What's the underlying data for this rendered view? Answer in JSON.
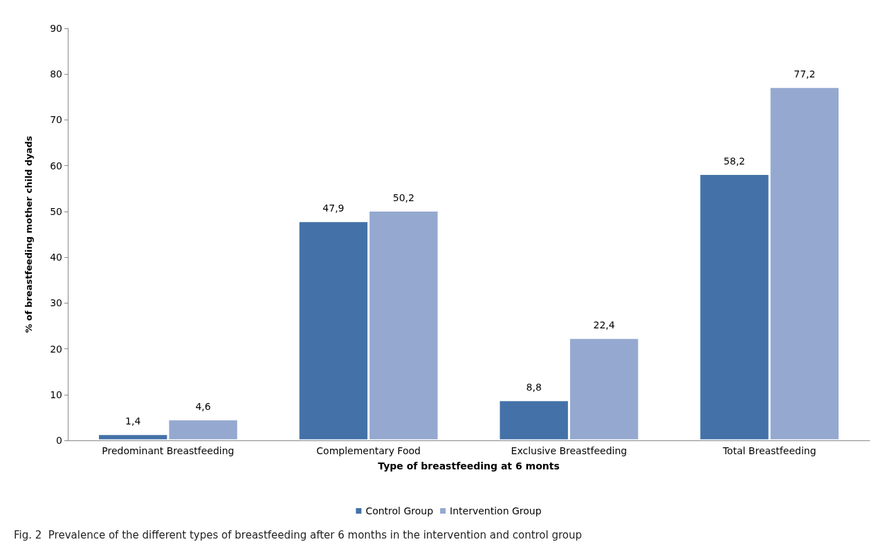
{
  "chart_data": {
    "type": "bar",
    "xlabel": "Type of breastfeeding at 6 monts",
    "ylabel": "% of breastfeeding mother child dyads",
    "categories": [
      "Predominant Breastfeeding",
      "Complementary Food",
      "Exclusive Breastfeeding",
      "Total Breastfeeding"
    ],
    "series": [
      {
        "name": "Control Group",
        "color": "#4472a8",
        "values": [
          1.4,
          47.9,
          8.8,
          58.2
        ],
        "value_labels": [
          "1,4",
          "47,9",
          "8,8",
          "58,2"
        ]
      },
      {
        "name": "Intervention Group",
        "color": "#95a9d0",
        "values": [
          4.6,
          50.2,
          22.4,
          77.2
        ],
        "value_labels": [
          "4,6",
          "50,2",
          "22,4",
          "77,2"
        ]
      }
    ],
    "ylim": [
      0,
      90
    ],
    "yticks": [
      0,
      10,
      20,
      30,
      40,
      50,
      60,
      70,
      80,
      90
    ],
    "grid": false,
    "legend": "bottom",
    "annotations": [
      "Fig. 2  Prevalence of the different types of breastfeeding after 6 months in the intervention and control group"
    ]
  }
}
